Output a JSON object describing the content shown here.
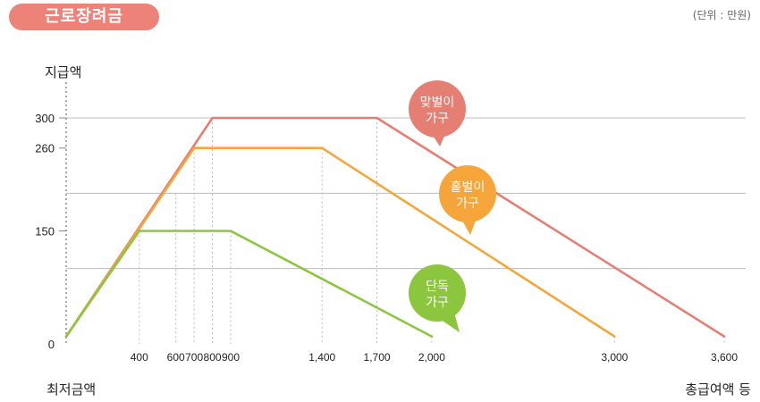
{
  "header": {
    "title": "근로장려금",
    "unit": "(단위 : 만원)"
  },
  "axes": {
    "ylabel": "지급액",
    "xlabel_left": "최저금액",
    "xlabel_right": "총급여액 등"
  },
  "colors": {
    "title_bg": "#ed8278",
    "couple": "#e57f74",
    "single_earner": "#f5a53a",
    "single": "#8cc63f",
    "grid": "#bdbdbd",
    "axis_dotted": "#888888"
  },
  "chart_data": {
    "type": "line",
    "xlim": [
      0,
      3600
    ],
    "ylim": [
      0,
      300
    ],
    "grid": true,
    "x_ticks": [
      {
        "value": 400,
        "label": "400"
      },
      {
        "value": 600,
        "label": "600"
      },
      {
        "value": 700,
        "label": "700"
      },
      {
        "value": 800,
        "label": "800"
      },
      {
        "value": 900,
        "label": "900"
      },
      {
        "value": 1400,
        "label": "1,400"
      },
      {
        "value": 1700,
        "label": "1,700"
      },
      {
        "value": 2000,
        "label": "2,000"
      },
      {
        "value": 3000,
        "label": "3,000"
      },
      {
        "value": 3600,
        "label": "3,600"
      }
    ],
    "y_ticks": [
      {
        "value": 0,
        "label": "0"
      },
      {
        "value": 150,
        "label": "150"
      },
      {
        "value": 260,
        "label": "260"
      },
      {
        "value": 300,
        "label": "300"
      }
    ],
    "series": [
      {
        "name": "맞벌이 가구",
        "color": "#e57f74",
        "points": [
          [
            0,
            10
          ],
          [
            800,
            300
          ],
          [
            1700,
            300
          ],
          [
            3600,
            10
          ]
        ]
      },
      {
        "name": "홑벌이 가구",
        "color": "#f5a53a",
        "points": [
          [
            0,
            10
          ],
          [
            700,
            260
          ],
          [
            1400,
            260
          ],
          [
            3000,
            10
          ]
        ]
      },
      {
        "name": "단독 가구",
        "color": "#8cc63f",
        "points": [
          [
            0,
            10
          ],
          [
            400,
            150
          ],
          [
            900,
            150
          ],
          [
            2000,
            10
          ]
        ]
      }
    ],
    "callouts": [
      {
        "series": "맞벌이 가구",
        "line1": "맞벌이",
        "line2": "가구",
        "color": "#e57f74"
      },
      {
        "series": "홑벌이 가구",
        "line1": "홑벌이",
        "line2": "가구",
        "color": "#f5a53a"
      },
      {
        "series": "단독 가구",
        "line1": "단독",
        "line2": "가구",
        "color": "#8cc63f"
      }
    ]
  }
}
